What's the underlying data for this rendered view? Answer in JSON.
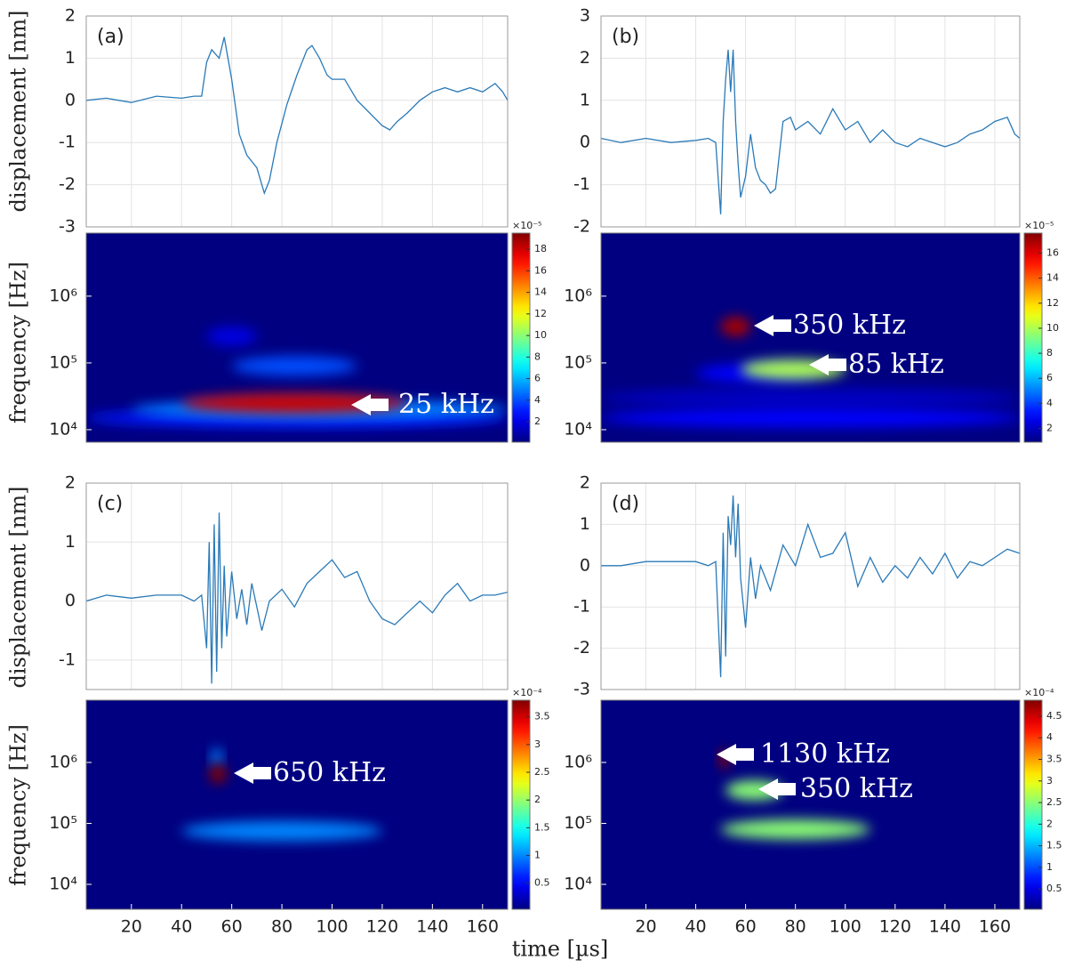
{
  "xlabel": "time [µs]",
  "chart_data": [
    {
      "type": "line",
      "panel_label": "(a)",
      "ylabel": "displacement [nm]",
      "color": "#2a7ab8",
      "grid": true,
      "xlim": [
        2,
        170
      ],
      "xticks": [
        20,
        40,
        60,
        80,
        100,
        120,
        140,
        160
      ],
      "ylim": [
        -3,
        2
      ],
      "yticks": [
        -3,
        -2,
        -1,
        0,
        1,
        2
      ],
      "x": [
        2,
        10,
        20,
        30,
        40,
        45,
        48,
        50,
        52,
        55,
        57,
        60,
        63,
        66,
        70,
        73,
        75,
        78,
        82,
        86,
        90,
        92,
        95,
        98,
        100,
        105,
        110,
        115,
        120,
        123,
        126,
        130,
        135,
        140,
        145,
        150,
        155,
        160,
        165,
        168,
        170
      ],
      "values": [
        0,
        0.05,
        -0.05,
        0.1,
        0.05,
        0.1,
        0.1,
        0.9,
        1.2,
        1.0,
        1.5,
        0.5,
        -0.8,
        -1.3,
        -1.6,
        -2.2,
        -1.9,
        -1.0,
        -0.1,
        0.6,
        1.2,
        1.3,
        1.0,
        0.6,
        0.5,
        0.5,
        0.0,
        -0.3,
        -0.6,
        -0.7,
        -0.5,
        -0.3,
        0.0,
        0.2,
        0.3,
        0.2,
        0.3,
        0.2,
        0.4,
        0.2,
        0.0
      ]
    },
    {
      "type": "scalogram",
      "ylabel": "frequency [Hz]",
      "log_y": true,
      "xlim": [
        2,
        170
      ],
      "ylim": [
        6500,
        8800000
      ],
      "yticks": [
        {
          "value": 10000,
          "label": "10⁴"
        },
        {
          "value": 100000,
          "label": "10⁵"
        },
        {
          "value": 1000000,
          "label": "10⁶"
        }
      ],
      "clim": [
        0.1,
        19.5
      ],
      "cticks": [
        2,
        4,
        6,
        8,
        10,
        12,
        14,
        16,
        18
      ],
      "cexponent": "×10⁻⁵",
      "blobs": [
        {
          "t": [
            50,
            70
          ],
          "f": 250000,
          "value": 2
        },
        {
          "t": [
            2,
            170
          ],
          "f": 15000,
          "value": 3
        },
        {
          "t": [
            60,
            110
          ],
          "f": 90000,
          "value": 4
        },
        {
          "t": [
            20,
            170
          ],
          "f": 20000,
          "value": 5
        },
        {
          "t": [
            40,
            130
          ],
          "f": 25000,
          "value": 18
        }
      ],
      "annotations": [
        "25 kHz"
      ]
    },
    {
      "type": "line",
      "panel_label": "(b)",
      "color": "#2a7ab8",
      "grid": true,
      "xlim": [
        2,
        170
      ],
      "xticks": [
        20,
        40,
        60,
        80,
        100,
        120,
        140,
        160
      ],
      "ylim": [
        -2,
        3
      ],
      "yticks": [
        -2,
        -1,
        0,
        1,
        2,
        3
      ],
      "x": [
        2,
        10,
        20,
        30,
        40,
        45,
        48,
        50,
        51,
        52,
        53,
        54,
        55,
        56,
        57,
        58,
        60,
        62,
        64,
        66,
        68,
        70,
        72,
        75,
        78,
        80,
        85,
        90,
        95,
        100,
        105,
        110,
        115,
        120,
        125,
        130,
        135,
        140,
        145,
        150,
        155,
        160,
        165,
        168,
        170
      ],
      "values": [
        0.1,
        0.0,
        0.1,
        0.0,
        0.05,
        0.1,
        0.0,
        -1.7,
        0.5,
        1.5,
        2.2,
        1.2,
        2.2,
        0.5,
        -0.5,
        -1.3,
        -0.8,
        0.2,
        -0.6,
        -0.9,
        -1.0,
        -1.2,
        -1.1,
        0.5,
        0.6,
        0.3,
        0.5,
        0.2,
        0.8,
        0.3,
        0.5,
        0.0,
        0.3,
        0.0,
        -0.1,
        0.1,
        0.0,
        -0.1,
        0.0,
        0.2,
        0.3,
        0.5,
        0.6,
        0.2,
        0.1
      ]
    },
    {
      "type": "scalogram",
      "log_y": true,
      "xlim": [
        2,
        170
      ],
      "ylim": [
        6500,
        8800000
      ],
      "yticks": [
        {
          "value": 10000,
          "label": "10⁴"
        },
        {
          "value": 100000,
          "label": "10⁵"
        },
        {
          "value": 1000000,
          "label": "10⁶"
        }
      ],
      "clim": [
        0.9,
        17.6
      ],
      "cticks": [
        2,
        4,
        6,
        8,
        10,
        12,
        14,
        16
      ],
      "cexponent": "×10⁻⁵",
      "blobs": [
        {
          "t": [
            2,
            170
          ],
          "f": 30000,
          "value": 2
        },
        {
          "t": [
            2,
            170
          ],
          "f": 15000,
          "value": 3
        },
        {
          "t": [
            40,
            90
          ],
          "f": 70000,
          "value": 3
        },
        {
          "t": [
            58,
            100
          ],
          "f": 80000,
          "value": 10
        },
        {
          "t": [
            50,
            62
          ],
          "f": 350000,
          "value": 17
        }
      ],
      "annotations": [
        "350 kHz",
        "85 kHz"
      ]
    },
    {
      "type": "line",
      "panel_label": "(c)",
      "ylabel": "displacement [nm]",
      "color": "#2a7ab8",
      "grid": true,
      "xlim": [
        2,
        170
      ],
      "xticks": [
        20,
        40,
        60,
        80,
        100,
        120,
        140,
        160
      ],
      "ylim": [
        -1.5,
        2
      ],
      "yticks": [
        -1,
        0,
        1,
        2
      ],
      "x": [
        2,
        10,
        20,
        30,
        40,
        45,
        48,
        50,
        51,
        52,
        53,
        54,
        55,
        56,
        57,
        58,
        60,
        62,
        64,
        66,
        68,
        70,
        72,
        75,
        80,
        85,
        90,
        95,
        100,
        105,
        110,
        115,
        120,
        125,
        130,
        135,
        140,
        145,
        150,
        155,
        160,
        165,
        170
      ],
      "values": [
        0.0,
        0.1,
        0.05,
        0.1,
        0.1,
        0.0,
        0.1,
        -0.8,
        1.0,
        -1.4,
        1.3,
        -1.2,
        1.5,
        -0.8,
        0.6,
        -0.6,
        0.5,
        -0.3,
        0.2,
        -0.4,
        0.3,
        -0.1,
        -0.5,
        0.0,
        0.2,
        -0.1,
        0.3,
        0.5,
        0.7,
        0.4,
        0.5,
        0.0,
        -0.3,
        -0.4,
        -0.2,
        0.0,
        -0.2,
        0.1,
        0.3,
        0.0,
        0.1,
        0.1,
        0.15
      ]
    },
    {
      "type": "scalogram",
      "ylabel": "frequency [Hz]",
      "log_y": true,
      "xlim": [
        2,
        170
      ],
      "ylim": [
        3900,
        10500000
      ],
      "xticks": [
        20,
        40,
        60,
        80,
        100,
        120,
        140,
        160
      ],
      "yticks": [
        {
          "value": 10000,
          "label": "10⁴"
        },
        {
          "value": 100000,
          "label": "10⁵"
        },
        {
          "value": 1000000,
          "label": "10⁶"
        }
      ],
      "clim": [
        0.03,
        3.8
      ],
      "cticks": [
        0.5,
        1,
        1.5,
        2,
        2.5,
        3,
        3.5
      ],
      "cexponent": "×10⁻⁴",
      "blobs": [
        {
          "t": [
            40,
            120
          ],
          "f": 75000,
          "value": 1
        },
        {
          "t": [
            52,
            56
          ],
          "f": 1200000,
          "value": 1
        },
        {
          "t": [
            51,
            58
          ],
          "f": 650000,
          "value": 3.8
        }
      ],
      "annotations": [
        "650 kHz"
      ]
    },
    {
      "type": "line",
      "panel_label": "(d)",
      "color": "#2a7ab8",
      "grid": true,
      "xlim": [
        2,
        170
      ],
      "xticks": [
        20,
        40,
        60,
        80,
        100,
        120,
        140,
        160
      ],
      "ylim": [
        -3,
        2
      ],
      "yticks": [
        -3,
        -2,
        -1,
        0,
        1,
        2
      ],
      "x": [
        2,
        10,
        20,
        30,
        40,
        45,
        48,
        50,
        51,
        52,
        53,
        54,
        55,
        56,
        57,
        58,
        60,
        62,
        64,
        66,
        68,
        70,
        75,
        80,
        85,
        90,
        95,
        100,
        105,
        110,
        115,
        120,
        125,
        130,
        135,
        140,
        145,
        150,
        155,
        160,
        165,
        170
      ],
      "values": [
        0.0,
        0.0,
        0.1,
        0.1,
        0.1,
        0.0,
        0.1,
        -2.7,
        0.8,
        -2.2,
        1.2,
        0.5,
        1.7,
        0.2,
        1.5,
        -0.3,
        -1.5,
        0.2,
        -0.8,
        0.0,
        -0.3,
        -0.6,
        0.5,
        0.0,
        1.0,
        0.2,
        0.3,
        0.8,
        -0.5,
        0.2,
        -0.4,
        0.0,
        -0.3,
        0.2,
        -0.2,
        0.3,
        -0.3,
        0.1,
        0.0,
        0.2,
        0.4,
        0.3
      ]
    },
    {
      "type": "scalogram",
      "log_y": true,
      "xlim": [
        2,
        170
      ],
      "ylim": [
        3900,
        10500000
      ],
      "xticks": [
        20,
        40,
        60,
        80,
        100,
        120,
        140,
        160
      ],
      "yticks": [
        {
          "value": 10000,
          "label": "10⁴"
        },
        {
          "value": 100000,
          "label": "10⁵"
        },
        {
          "value": 1000000,
          "label": "10⁶"
        }
      ],
      "clim": [
        0.03,
        4.87
      ],
      "cticks": [
        0.5,
        1,
        1.5,
        2,
        2.5,
        3,
        3.5,
        4,
        4.5
      ],
      "cexponent": "×10⁻⁴",
      "blobs": [
        {
          "t": [
            52,
            75
          ],
          "f": 350000,
          "value": 2.5
        },
        {
          "t": [
            50,
            110
          ],
          "f": 80000,
          "value": 2.5
        },
        {
          "t": [
            50,
            53
          ],
          "f": 1130000,
          "value": 4.8
        }
      ],
      "annotations": [
        "1130 kHz",
        "350 kHz"
      ]
    }
  ]
}
